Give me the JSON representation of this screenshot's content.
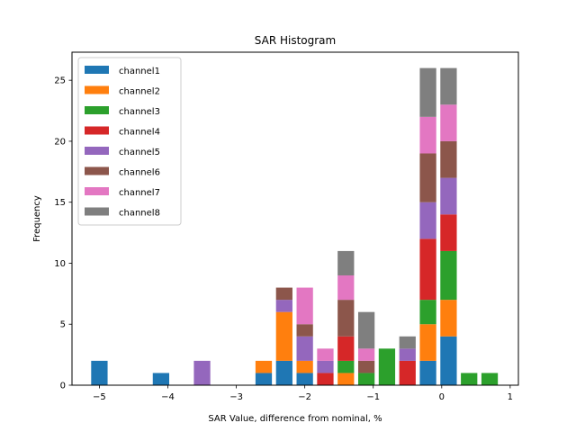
{
  "chart_data": {
    "type": "bar",
    "stacked": true,
    "title": "SAR Histogram",
    "xlabel": "SAR Value, difference from nominal, %",
    "ylabel": "Frequency",
    "xlim": [
      -5.4,
      1.12
    ],
    "ylim": [
      0,
      27.3
    ],
    "xticks": [
      -5,
      -4,
      -3,
      -2,
      -1,
      0,
      1
    ],
    "xtick_labels": [
      "−5",
      "−4",
      "−3",
      "−2",
      "−1",
      "0",
      "1"
    ],
    "yticks": [
      0,
      5,
      10,
      15,
      20,
      25
    ],
    "ytick_labels": [
      "0",
      "5",
      "10",
      "15",
      "20",
      "25"
    ],
    "bin_width": 0.24,
    "legend_position": "top-left",
    "grid": false,
    "x": [
      -5.0,
      -4.1,
      -3.5,
      -2.6,
      -2.3,
      -2.0,
      -1.7,
      -1.4,
      -1.1,
      -0.8,
      -0.5,
      -0.2,
      0.1,
      0.4,
      0.7
    ],
    "series": [
      {
        "name": "channel1",
        "color": "#1f77b4",
        "values": [
          2,
          1,
          0,
          1,
          2,
          1,
          0,
          0,
          0,
          0,
          0,
          2,
          4,
          0,
          0
        ]
      },
      {
        "name": "channel2",
        "color": "#ff7f0e",
        "values": [
          0,
          0,
          0,
          1,
          4,
          1,
          0,
          1,
          0,
          0,
          0,
          3,
          3,
          0,
          0
        ]
      },
      {
        "name": "channel3",
        "color": "#2ca02c",
        "values": [
          0,
          0,
          0,
          0,
          0,
          0,
          0,
          1,
          1,
          3,
          0,
          2,
          4,
          1,
          1
        ]
      },
      {
        "name": "channel4",
        "color": "#d62728",
        "values": [
          0,
          0,
          0,
          0,
          0,
          0,
          1,
          2,
          0,
          0,
          2,
          5,
          3,
          0,
          0
        ]
      },
      {
        "name": "channel5",
        "color": "#9467bd",
        "values": [
          0,
          0,
          2,
          0,
          1,
          2,
          1,
          0,
          0,
          0,
          1,
          3,
          3,
          0,
          0
        ]
      },
      {
        "name": "channel6",
        "color": "#8c564b",
        "values": [
          0,
          0,
          0,
          0,
          1,
          1,
          0,
          3,
          1,
          0,
          0,
          4,
          3,
          0,
          0
        ]
      },
      {
        "name": "channel7",
        "color": "#e377c2",
        "values": [
          0,
          0,
          0,
          0,
          0,
          3,
          1,
          2,
          1,
          0,
          0,
          3,
          3,
          0,
          0
        ]
      },
      {
        "name": "channel8",
        "color": "#7f7f7f",
        "values": [
          0,
          0,
          0,
          0,
          0,
          0,
          0,
          2,
          3,
          0,
          1,
          4,
          3,
          0,
          0
        ]
      }
    ]
  }
}
